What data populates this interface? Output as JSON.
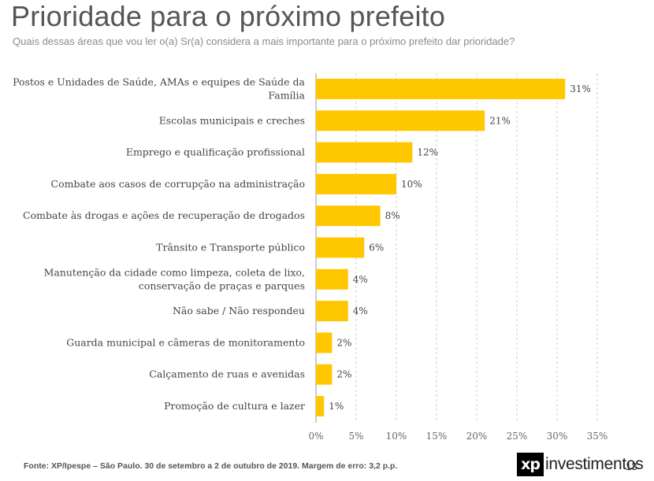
{
  "header": {
    "title": "Prioridade para o próximo prefeito",
    "subtitle": "Quais dessas áreas que vou ler o(a) Sr(a) considera a mais importante para o próximo prefeito dar prioridade?"
  },
  "chart_data": {
    "type": "bar",
    "orientation": "horizontal",
    "categories": [
      [
        "Postos e Unidades de Saúde, AMAs e equipes de Saúde da",
        "Família"
      ],
      [
        "Escolas municipais e creches"
      ],
      [
        "Emprego e qualificação profissional"
      ],
      [
        "Combate aos casos de corrupção na administração"
      ],
      [
        "Combate às drogas e ações de recuperação de drogados"
      ],
      [
        "Trânsito e Transporte público"
      ],
      [
        "Manutenção da cidade como limpeza, coleta de lixo,",
        "conservação de praças e parques"
      ],
      [
        "Não sabe / Não respondeu"
      ],
      [
        "Guarda municipal e câmeras de monitoramento"
      ],
      [
        "Calçamento de ruas e avenidas"
      ],
      [
        "Promoção de cultura e lazer"
      ]
    ],
    "values": [
      31,
      21,
      12,
      10,
      8,
      6,
      4,
      4,
      2,
      2,
      1
    ],
    "value_labels": [
      "31%",
      "21%",
      "12%",
      "10%",
      "8%",
      "6%",
      "4%",
      "4%",
      "2%",
      "2%",
      "1%"
    ],
    "xlim": [
      0,
      35
    ],
    "xticks": [
      0,
      5,
      10,
      15,
      20,
      25,
      30,
      35
    ],
    "xtick_labels": [
      "0%",
      "5%",
      "10%",
      "15%",
      "20%",
      "25%",
      "30%",
      "35%"
    ],
    "xlabel": "",
    "ylabel": "",
    "grid": "vertical dashed",
    "bar_color": "#FFC700",
    "grid_color": "#cccccc"
  },
  "footer": {
    "source": "Fonte: XP/Ipespe – São Paulo. 30 de setembro a 2 de outubro de 2019. Margem de erro: 3,2 p.p.",
    "logo_mark": "xp",
    "logo_text": "investimentos",
    "page_number": "13"
  }
}
